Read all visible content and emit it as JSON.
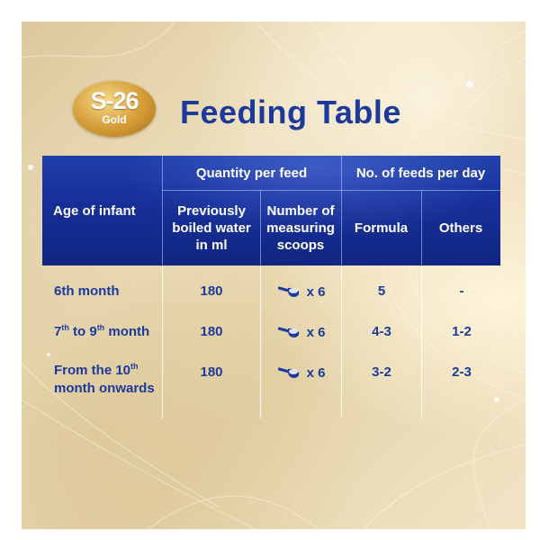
{
  "brand": {
    "name": "S-26",
    "sub": "Gold"
  },
  "title": "Feeding Table",
  "header": {
    "age_col": "Age of infant",
    "quantity_group": "Quantity per feed",
    "feeds_group": "No. of feeds per day",
    "water_col": "Previously boiled water in ml",
    "scoops_col": "Number of measuring scoops",
    "formula_col": "Formula",
    "others_col": "Others"
  },
  "rows": [
    {
      "age_pre": "6th month",
      "water": "180",
      "scoops": "x 6",
      "formula": "5",
      "others": "-"
    },
    {
      "age_pre": "7",
      "age_sup1": "th",
      "age_mid": " to 9",
      "age_sup2": "th",
      "age_post": " month",
      "water": "180",
      "scoops": "x 6",
      "formula": "4-3",
      "others": "1-2"
    },
    {
      "age_pre": "From the 10",
      "age_sup1": "th",
      "age_post": "month onwards",
      "water": "180",
      "scoops": "x 6",
      "formula": "3-2",
      "others": "2-3"
    }
  ],
  "colors": {
    "navy": "#1c3a9c",
    "header_blue": "#17309a",
    "gold": "#d49b35",
    "cream": "#ebdcb6"
  },
  "icons": {
    "scoop": "measuring-scoop-icon"
  }
}
